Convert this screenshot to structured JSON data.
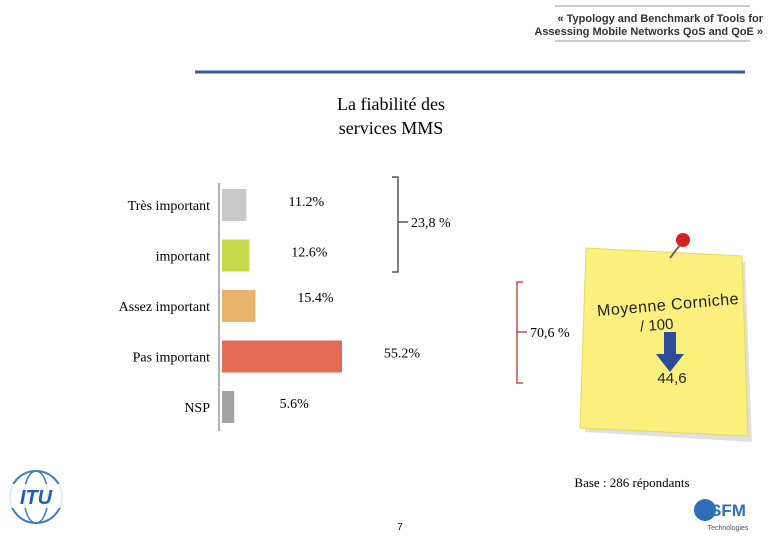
{
  "header": {
    "line1": "« Typology and Benchmark of Tools for",
    "line2": "Assessing Mobile Networks QoS and QoE »"
  },
  "chart_data": {
    "type": "hbar",
    "title_line1": "La fiabilité des",
    "title_line2": "services MMS",
    "categories": [
      "Très important",
      "important",
      "Assez important",
      "Pas important",
      "NSP"
    ],
    "values": [
      11.2,
      12.6,
      15.4,
      55.2,
      5.6
    ],
    "value_labels": [
      "11.2%",
      "12.6%",
      "15.4%",
      "55.2%",
      "5.6%"
    ],
    "colors": [
      "#c9c9c9",
      "#c6d94b",
      "#e8b36b",
      "#e46c55",
      "#a3a3a3"
    ],
    "brackets": [
      "23,8 %",
      "70,6 %"
    ]
  },
  "note": {
    "line1": "Moyenne Corniche",
    "line2": "/ 100",
    "score": "44,6"
  },
  "footer": {
    "base": "Base : 286 répondants",
    "page": "7",
    "logo_left": "ITU",
    "logo_right": "SFM",
    "logo_right_sub": "Technologies"
  }
}
